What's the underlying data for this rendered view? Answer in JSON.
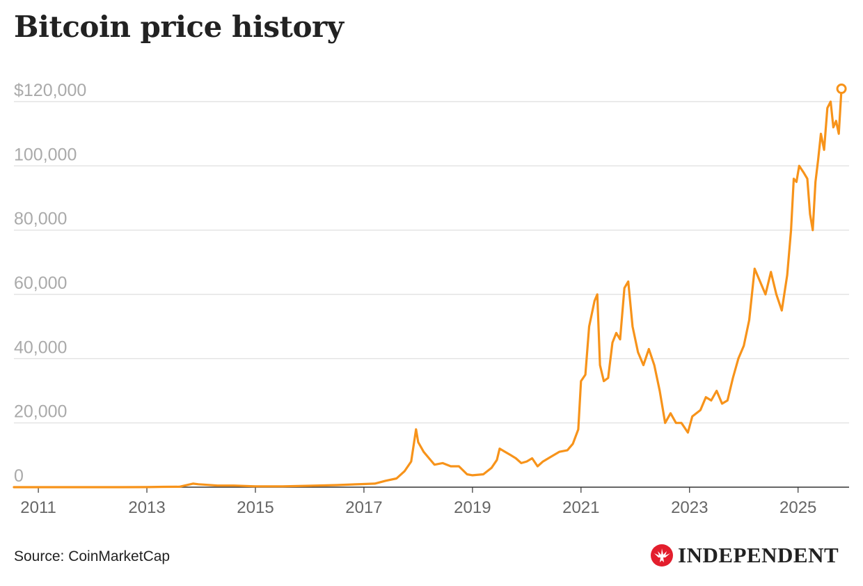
{
  "title": "Bitcoin price history",
  "source": "Source: CoinMarketCap",
  "brand": {
    "name": "INDEPENDENT",
    "logo_icon": "eagle-logo-icon"
  },
  "colors": {
    "line": "#F7931A",
    "grid": "#dddddd",
    "axis": "#333333",
    "tick": "#aaaaaa",
    "xtick": "#666666",
    "brand": "#e31e2d"
  },
  "chart_data": {
    "type": "line",
    "title": "Bitcoin price history",
    "xlabel": "",
    "ylabel": "",
    "xlim": [
      2010.55,
      2025.94
    ],
    "ylim": [
      0,
      120000
    ],
    "yticks": [
      {
        "value": 0,
        "label": "0"
      },
      {
        "value": 20000,
        "label": "20,000"
      },
      {
        "value": 40000,
        "label": "40,000"
      },
      {
        "value": 60000,
        "label": "60,000"
      },
      {
        "value": 80000,
        "label": "80,000"
      },
      {
        "value": 100000,
        "label": "100,000"
      },
      {
        "value": 120000,
        "label": "$120,000"
      }
    ],
    "xticks": [
      {
        "value": 2011,
        "label": "2011"
      },
      {
        "value": 2013,
        "label": "2013"
      },
      {
        "value": 2015,
        "label": "2015"
      },
      {
        "value": 2017,
        "label": "2017"
      },
      {
        "value": 2019,
        "label": "2019"
      },
      {
        "value": 2021,
        "label": "2021"
      },
      {
        "value": 2023,
        "label": "2023"
      },
      {
        "value": 2025,
        "label": "2025"
      }
    ],
    "grid": true,
    "last_point_marker": true,
    "x": [
      2010.55,
      2011.0,
      2011.5,
      2012.0,
      2012.5,
      2013.0,
      2013.3,
      2013.6,
      2013.85,
      2013.95,
      2014.05,
      2014.3,
      2014.6,
      2015.0,
      2015.5,
      2016.0,
      2016.5,
      2016.95,
      2017.2,
      2017.4,
      2017.6,
      2017.75,
      2017.87,
      2017.96,
      2018.0,
      2018.1,
      2018.2,
      2018.3,
      2018.45,
      2018.6,
      2018.75,
      2018.9,
      2019.0,
      2019.2,
      2019.35,
      2019.45,
      2019.5,
      2019.6,
      2019.7,
      2019.8,
      2019.9,
      2020.0,
      2020.1,
      2020.2,
      2020.3,
      2020.45,
      2020.6,
      2020.75,
      2020.85,
      2020.95,
      2021.0,
      2021.08,
      2021.15,
      2021.25,
      2021.3,
      2021.35,
      2021.42,
      2021.5,
      2021.58,
      2021.65,
      2021.72,
      2021.8,
      2021.87,
      2021.95,
      2022.05,
      2022.15,
      2022.25,
      2022.35,
      2022.45,
      2022.55,
      2022.65,
      2022.75,
      2022.85,
      2022.97,
      2023.05,
      2023.2,
      2023.3,
      2023.4,
      2023.5,
      2023.6,
      2023.7,
      2023.8,
      2023.9,
      2024.0,
      2024.1,
      2024.2,
      2024.3,
      2024.4,
      2024.5,
      2024.6,
      2024.7,
      2024.8,
      2024.87,
      2024.92,
      2024.97,
      2025.02,
      2025.1,
      2025.17,
      2025.22,
      2025.27,
      2025.32,
      2025.37,
      2025.42,
      2025.48,
      2025.54,
      2025.6,
      2025.65,
      2025.7,
      2025.75,
      2025.8
    ],
    "values": [
      0,
      1,
      5,
      5,
      7,
      13,
      100,
      120,
      1100,
      900,
      800,
      500,
      500,
      250,
      260,
      430,
      650,
      950,
      1100,
      2000,
      2700,
      5000,
      8000,
      18000,
      14000,
      11000,
      9000,
      7000,
      7500,
      6500,
      6500,
      4000,
      3700,
      4000,
      6000,
      8500,
      12000,
      11000,
      10000,
      9000,
      7500,
      8000,
      9000,
      6500,
      8000,
      9500,
      11000,
      11500,
      13500,
      18000,
      33000,
      35000,
      50000,
      58000,
      60000,
      38000,
      33000,
      34000,
      45000,
      48000,
      46000,
      62000,
      64000,
      50000,
      42000,
      38000,
      43000,
      38000,
      30000,
      20000,
      23000,
      20000,
      20000,
      17000,
      22000,
      24000,
      28000,
      27000,
      30000,
      26000,
      27000,
      34000,
      40000,
      44000,
      52000,
      68000,
      64000,
      60000,
      67000,
      60000,
      55000,
      66000,
      80000,
      96000,
      95000,
      100000,
      98000,
      96000,
      85000,
      80000,
      95000,
      102000,
      110000,
      105000,
      118000,
      120000,
      112000,
      114000,
      110000,
      124000
    ]
  }
}
